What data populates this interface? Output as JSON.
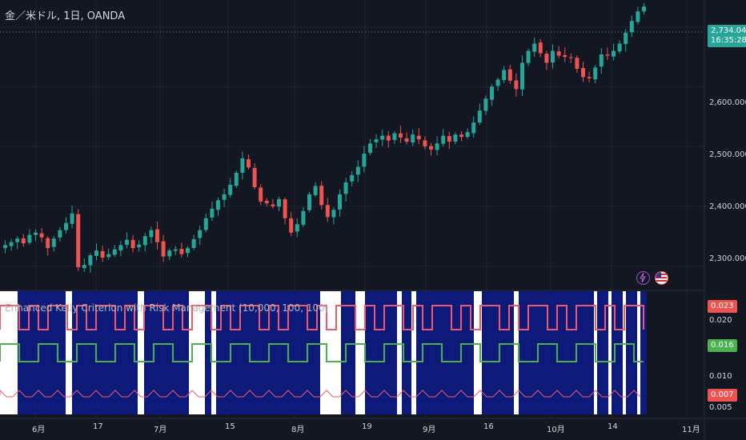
{
  "header": {
    "title": "金／米ドル, 1日, OANDA"
  },
  "price_scale": {
    "current_price": "2,734.045",
    "countdown": "16:35:28",
    "ticks": [
      "2,600.000",
      "2,500.000",
      "2,400.000",
      "2,300.000"
    ]
  },
  "indicator": {
    "title": "Enhanced Kelly Criterion with Risk Management (10,000, 100, 100)",
    "ticks": [
      "0.020",
      "0.010",
      "0.005"
    ],
    "labels": {
      "red_top": "0.023",
      "green": "0.016",
      "red_bottom": "0.007"
    }
  },
  "time_axis": {
    "labels": [
      "6月",
      "17",
      "7月",
      "15",
      "8月",
      "19",
      "9月",
      "16",
      "10月",
      "14",
      "11月"
    ]
  },
  "colors": {
    "up": "#26a69a",
    "down": "#ef5350",
    "navy": "#0d1a7a",
    "green_line": "#4caf50",
    "red_line": "#f05a68"
  },
  "events": {
    "icons": [
      "lightning-icon",
      "us-flag-icon"
    ]
  },
  "chart_data": {
    "type": "candlestick",
    "title": "金／米ドル, 1日, OANDA",
    "ylim": [
      2270,
      2745
    ],
    "close_series": [
      2335,
      2340,
      2346,
      2338,
      2352,
      2356,
      2348,
      2330,
      2346,
      2360,
      2372,
      2388,
      2298,
      2302,
      2318,
      2326,
      2314,
      2320,
      2328,
      2335,
      2344,
      2330,
      2336,
      2350,
      2360,
      2340,
      2316,
      2326,
      2328,
      2320,
      2330,
      2345,
      2360,
      2380,
      2396,
      2410,
      2420,
      2436,
      2456,
      2480,
      2465,
      2432,
      2408,
      2405,
      2400,
      2412,
      2380,
      2356,
      2370,
      2392,
      2420,
      2434,
      2402,
      2382,
      2394,
      2420,
      2440,
      2452,
      2466,
      2488,
      2505,
      2512,
      2518,
      2510,
      2522,
      2515,
      2508,
      2520,
      2512,
      2500,
      2495,
      2505,
      2518,
      2508,
      2520,
      2516,
      2524,
      2540,
      2560,
      2580,
      2600,
      2612,
      2628,
      2610,
      2596,
      2640,
      2660,
      2672,
      2656,
      2640,
      2660,
      2652,
      2650,
      2648,
      2630,
      2616,
      2614,
      2632,
      2654,
      2652,
      2660,
      2672,
      2690,
      2710,
      2726,
      2734
    ]
  }
}
